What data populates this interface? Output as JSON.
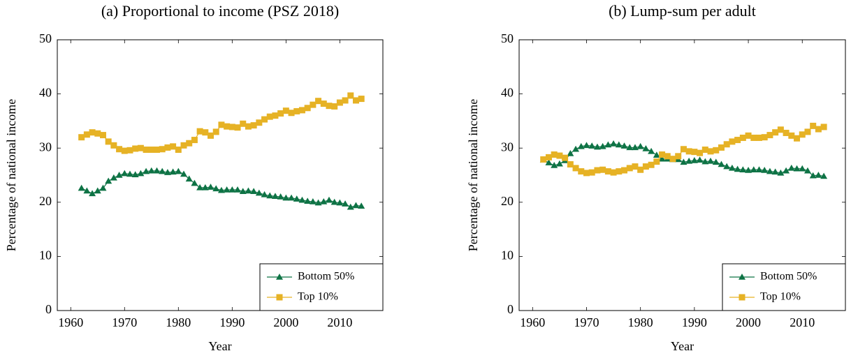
{
  "chart_data": [
    {
      "type": "line",
      "title": "(a) Proportional to income (PSZ 2018)",
      "xlabel": "Year",
      "ylabel": "Percentage of national income",
      "x": [
        1962,
        1963,
        1964,
        1965,
        1966,
        1967,
        1968,
        1969,
        1970,
        1971,
        1972,
        1973,
        1974,
        1975,
        1976,
        1977,
        1978,
        1979,
        1980,
        1981,
        1982,
        1983,
        1984,
        1985,
        1986,
        1987,
        1988,
        1989,
        1990,
        1991,
        1992,
        1993,
        1994,
        1995,
        1996,
        1997,
        1998,
        1999,
        2000,
        2001,
        2002,
        2003,
        2004,
        2005,
        2006,
        2007,
        2008,
        2009,
        2010,
        2011,
        2012,
        2013,
        2014
      ],
      "series": [
        {
          "name": "Bottom 50%",
          "color": "#0e7345",
          "marker": "triangle",
          "values": [
            22.6,
            22.1,
            21.6,
            22.1,
            22.6,
            23.9,
            24.5,
            25.0,
            25.3,
            25.2,
            25.1,
            25.3,
            25.7,
            25.8,
            25.8,
            25.7,
            25.5,
            25.6,
            25.7,
            25.2,
            24.3,
            23.5,
            22.7,
            22.7,
            22.8,
            22.5,
            22.2,
            22.3,
            22.3,
            22.3,
            22.0,
            22.1,
            22.0,
            21.7,
            21.4,
            21.2,
            21.1,
            21.0,
            20.8,
            20.8,
            20.6,
            20.4,
            20.2,
            20.1,
            19.9,
            20.1,
            20.4,
            20.0,
            19.9,
            19.7,
            19.1,
            19.4,
            19.3
          ]
        },
        {
          "name": "Top 10%",
          "color": "#e6b225",
          "marker": "square",
          "values": [
            32.0,
            32.5,
            32.9,
            32.7,
            32.4,
            31.2,
            30.5,
            29.8,
            29.5,
            29.6,
            29.9,
            30.0,
            29.7,
            29.7,
            29.7,
            29.8,
            30.1,
            30.3,
            29.7,
            30.5,
            30.9,
            31.5,
            33.1,
            32.9,
            32.3,
            33.0,
            34.3,
            34.0,
            33.9,
            33.8,
            34.5,
            34.0,
            34.2,
            34.7,
            35.3,
            35.8,
            36.0,
            36.4,
            36.9,
            36.5,
            36.8,
            37.0,
            37.4,
            38.0,
            38.7,
            38.2,
            37.8,
            37.7,
            38.4,
            38.8,
            39.7,
            38.8,
            39.1
          ]
        }
      ],
      "xlim": [
        1957.5,
        2018
      ],
      "ylim": [
        0,
        50
      ],
      "xticks": [
        1960,
        1970,
        1980,
        1990,
        2000,
        2010
      ],
      "yticks": [
        0,
        10,
        20,
        30,
        40,
        50
      ],
      "legend": "lower right"
    },
    {
      "type": "line",
      "title": "(b) Lump-sum per adult",
      "xlabel": "Year",
      "ylabel": "Percentage of national income",
      "x": [
        1962,
        1963,
        1964,
        1965,
        1966,
        1967,
        1968,
        1969,
        1970,
        1971,
        1972,
        1973,
        1974,
        1975,
        1976,
        1977,
        1978,
        1979,
        1980,
        1981,
        1982,
        1983,
        1984,
        1985,
        1986,
        1987,
        1988,
        1989,
        1990,
        1991,
        1992,
        1993,
        1994,
        1995,
        1996,
        1997,
        1998,
        1999,
        2000,
        2001,
        2002,
        2003,
        2004,
        2005,
        2006,
        2007,
        2008,
        2009,
        2010,
        2011,
        2012,
        2013,
        2014
      ],
      "series": [
        {
          "name": "Bottom 50%",
          "color": "#0e7345",
          "marker": "triangle",
          "values": [
            27.8,
            27.3,
            26.8,
            27.1,
            27.7,
            29.0,
            29.8,
            30.3,
            30.5,
            30.4,
            30.2,
            30.3,
            30.6,
            30.8,
            30.6,
            30.4,
            30.1,
            30.1,
            30.3,
            29.9,
            29.4,
            28.7,
            28.0,
            28.0,
            27.9,
            27.9,
            27.4,
            27.6,
            27.7,
            27.8,
            27.5,
            27.6,
            27.4,
            27.0,
            26.6,
            26.3,
            26.1,
            26.0,
            25.9,
            26.0,
            26.0,
            25.9,
            25.7,
            25.6,
            25.4,
            25.8,
            26.3,
            26.2,
            26.2,
            25.8,
            24.9,
            25.0,
            24.8
          ]
        },
        {
          "name": "Top 10%",
          "color": "#e6b225",
          "marker": "square",
          "values": [
            27.9,
            28.3,
            28.8,
            28.6,
            28.2,
            27.0,
            26.3,
            25.7,
            25.4,
            25.5,
            25.9,
            26.0,
            25.7,
            25.5,
            25.7,
            25.9,
            26.3,
            26.6,
            26.0,
            26.6,
            26.9,
            27.5,
            28.8,
            28.5,
            28.0,
            28.5,
            29.8,
            29.4,
            29.3,
            29.1,
            29.7,
            29.4,
            29.6,
            30.1,
            30.7,
            31.2,
            31.5,
            31.9,
            32.3,
            31.9,
            31.9,
            32.0,
            32.4,
            32.9,
            33.4,
            32.8,
            32.3,
            31.8,
            32.5,
            33.0,
            34.1,
            33.5,
            33.9
          ]
        }
      ],
      "xlim": [
        1957.5,
        2018
      ],
      "ylim": [
        0,
        50
      ],
      "xticks": [
        1960,
        1970,
        1980,
        1990,
        2000,
        2010
      ],
      "yticks": [
        0,
        10,
        20,
        30,
        40,
        50
      ],
      "legend": "lower right"
    }
  ]
}
